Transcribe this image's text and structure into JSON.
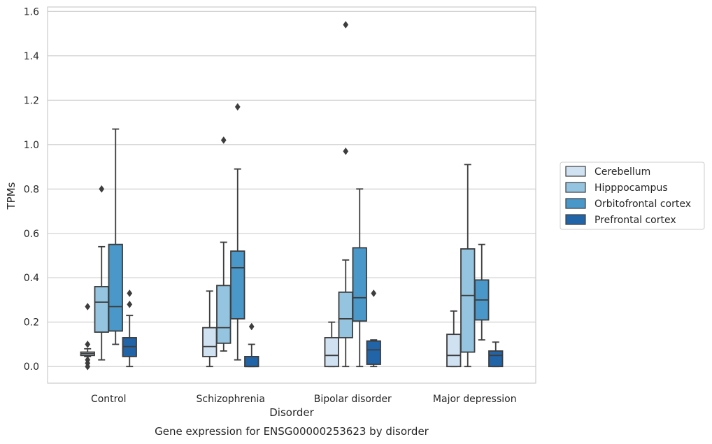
{
  "caption": "Gene expression for ENSG00000253623 by disorder",
  "chart_data": {
    "type": "box",
    "title": "",
    "xlabel": "Disorder",
    "ylabel": "TPMs",
    "ylim": [
      -0.075,
      1.62
    ],
    "yticks": [
      0.0,
      0.2,
      0.4,
      0.6,
      0.8,
      1.0,
      1.2,
      1.4,
      1.6
    ],
    "ytick_labels": [
      "0.0",
      "0.2",
      "0.4",
      "0.6",
      "0.8",
      "1.0",
      "1.2",
      "1.4",
      "1.6"
    ],
    "grid": true,
    "legend_position": "right, outside plot",
    "categories": [
      "Control",
      "Schizophrenia",
      "Bipolar disorder",
      "Major depression"
    ],
    "series": [
      {
        "name": "Cerebellum",
        "color": "#d0e1f2",
        "boxes": [
          {
            "whislo": 0.045,
            "q1": 0.05,
            "med": 0.058,
            "q3": 0.065,
            "whishi": 0.08,
            "fliers": [
              0.27,
              0.1,
              0.03,
              0.015,
              0.0
            ]
          },
          {
            "whislo": 0.0,
            "q1": 0.045,
            "med": 0.09,
            "q3": 0.175,
            "whishi": 0.34,
            "fliers": []
          },
          {
            "whislo": 0.0,
            "q1": 0.0,
            "med": 0.05,
            "q3": 0.13,
            "whishi": 0.2,
            "fliers": []
          },
          {
            "whislo": 0.0,
            "q1": 0.0,
            "med": 0.05,
            "q3": 0.145,
            "whishi": 0.25,
            "fliers": []
          }
        ]
      },
      {
        "name": "Hipppocampus",
        "color": "#94c4df",
        "boxes": [
          {
            "whislo": 0.03,
            "q1": 0.155,
            "med": 0.29,
            "q3": 0.36,
            "whishi": 0.54,
            "fliers": [
              0.8
            ]
          },
          {
            "whislo": 0.07,
            "q1": 0.105,
            "med": 0.175,
            "q3": 0.365,
            "whishi": 0.56,
            "fliers": [
              1.02
            ]
          },
          {
            "whislo": 0.0,
            "q1": 0.13,
            "med": 0.215,
            "q3": 0.335,
            "whishi": 0.48,
            "fliers": [
              0.97,
              1.54
            ]
          },
          {
            "whislo": 0.0,
            "q1": 0.065,
            "med": 0.32,
            "q3": 0.53,
            "whishi": 0.91,
            "fliers": []
          }
        ]
      },
      {
        "name": "Orbitofrontal cortex",
        "color": "#4a98c9",
        "boxes": [
          {
            "whislo": 0.1,
            "q1": 0.16,
            "med": 0.27,
            "q3": 0.55,
            "whishi": 1.07,
            "fliers": []
          },
          {
            "whislo": 0.03,
            "q1": 0.215,
            "med": 0.445,
            "q3": 0.52,
            "whishi": 0.89,
            "fliers": [
              1.17
            ]
          },
          {
            "whislo": 0.0,
            "q1": 0.205,
            "med": 0.31,
            "q3": 0.535,
            "whishi": 0.8,
            "fliers": []
          },
          {
            "whislo": 0.12,
            "q1": 0.21,
            "med": 0.3,
            "q3": 0.39,
            "whishi": 0.55,
            "fliers": []
          }
        ]
      },
      {
        "name": "Prefrontal cortex",
        "color": "#2264a8",
        "boxes": [
          {
            "whislo": 0.0,
            "q1": 0.045,
            "med": 0.09,
            "q3": 0.13,
            "whishi": 0.23,
            "fliers": [
              0.28,
              0.33
            ]
          },
          {
            "whislo": 0.0,
            "q1": 0.0,
            "med": 0.0,
            "q3": 0.045,
            "whishi": 0.1,
            "fliers": [
              0.18
            ]
          },
          {
            "whislo": 0.0,
            "q1": 0.01,
            "med": 0.075,
            "q3": 0.115,
            "whishi": 0.12,
            "fliers": [
              0.33
            ]
          },
          {
            "whislo": 0.0,
            "q1": 0.0,
            "med": 0.05,
            "q3": 0.07,
            "whishi": 0.11,
            "fliers": []
          }
        ]
      }
    ]
  }
}
